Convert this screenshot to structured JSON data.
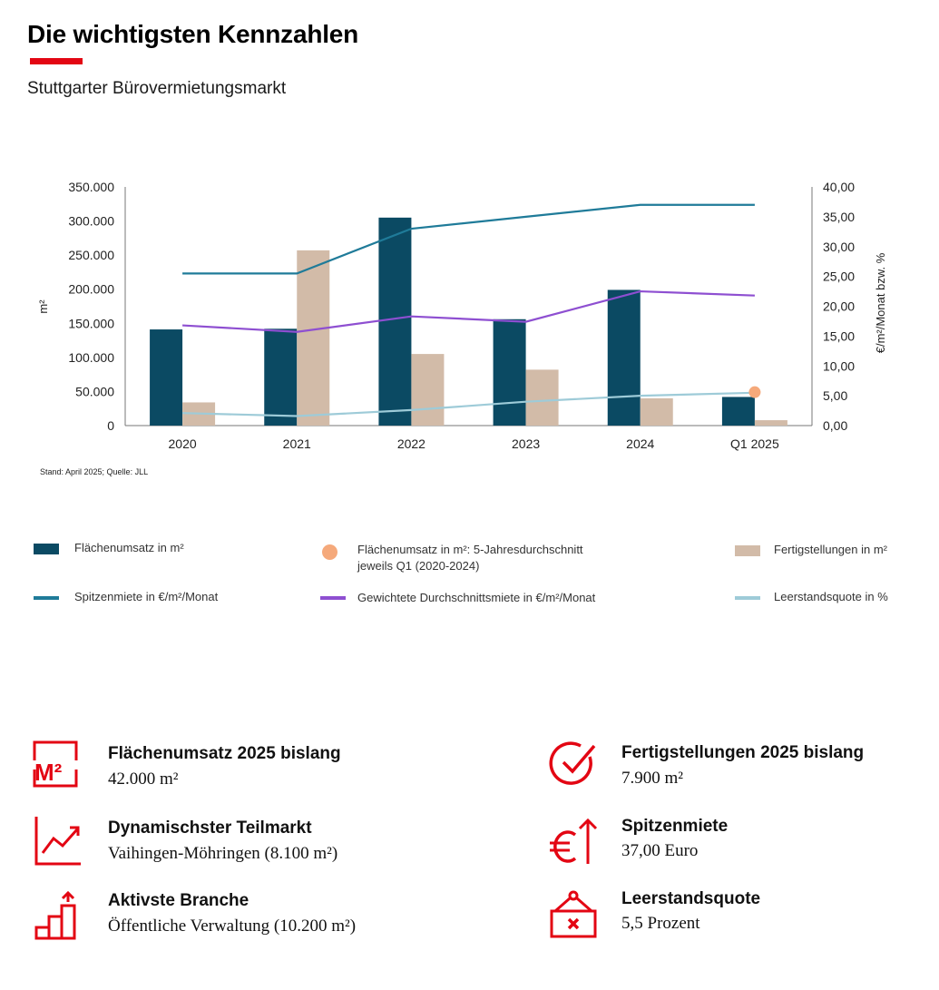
{
  "header": {
    "title": "Die wichtigsten Kennzahlen",
    "subtitle": "Stuttgarter Bürovermietungsmarkt"
  },
  "colors": {
    "accent": "#e30613",
    "flaechenumsatz": "#0b4a63",
    "fertigstellungen": "#d2bba8",
    "spitzenmiete": "#1f7b99",
    "durchschnittsmiete": "#8e4fd1",
    "leerstand": "#9ecbd8",
    "average_dot": "#f5a97b"
  },
  "chart_data": {
    "type": "bar",
    "categories": [
      "2020",
      "2021",
      "2022",
      "2023",
      "2024",
      "Q1 2025"
    ],
    "ylabel": "m²",
    "ylabel_right": "€/m²/Monat bzw. %",
    "ylim": [
      0,
      350000
    ],
    "ylim_right": [
      0,
      40
    ],
    "yticks": [
      "350.000",
      "300.000",
      "250.000",
      "200.000",
      "150.000",
      "100.000",
      "50.000",
      "0"
    ],
    "yticks_right": [
      "40,00",
      "35,00",
      "30,00",
      "25,00",
      "20,00",
      "15,00",
      "10,00",
      "5,00",
      "0,00"
    ],
    "source": "Stand: April 2025; Quelle: JLL",
    "series": [
      {
        "name": "Flächenumsatz in m²",
        "kind": "bar",
        "axis": "left",
        "color": "#0b4a63",
        "values": [
          141000,
          142000,
          305000,
          156000,
          199000,
          42000
        ]
      },
      {
        "name": "Fertigstellungen in m²",
        "kind": "bar",
        "axis": "left",
        "color": "#d2bba8",
        "values": [
          34000,
          257000,
          105000,
          82000,
          40000,
          7900
        ]
      },
      {
        "name": "Spitzenmiete in €/m²/Monat",
        "kind": "line",
        "axis": "right",
        "color": "#1f7b99",
        "values": [
          25.5,
          25.5,
          33.0,
          35.0,
          37.0,
          37.0
        ]
      },
      {
        "name": "Gewichtete Durchschnittsmiete in €/m²/Monat",
        "kind": "line",
        "axis": "right",
        "color": "#8e4fd1",
        "values": [
          16.8,
          15.7,
          18.3,
          17.4,
          22.5,
          21.8
        ]
      },
      {
        "name": "Leerstandsquote in %",
        "kind": "line",
        "axis": "right",
        "color": "#9ecbd8",
        "values": [
          2.1,
          1.6,
          2.6,
          4.0,
          5.0,
          5.5
        ]
      },
      {
        "name": "Flächenumsatz in m²: 5-Jahresdurchschnitt jeweils Q1 (2020-2024)",
        "kind": "point",
        "axis": "left",
        "color": "#f5a97b",
        "category": "Q1 2025",
        "value": 49000
      }
    ]
  },
  "legend": {
    "flaechenumsatz": "Flächenumsatz in m²",
    "avg_line1": "Flächenumsatz in m²: 5-Jahresdurchschnitt",
    "avg_line2": "jeweils Q1 (2020-2024)",
    "fertigstellungen": "Fertigstellungen in m²",
    "spitzenmiete": "Spitzenmiete in €/m²/Monat",
    "durchschnittsmiete": "Gewichtete Durchschnittsmiete in €/m²/Monat",
    "leerstand": "Leerstandsquote in %"
  },
  "kpis": {
    "flaechenumsatz": {
      "label": "Flächenumsatz 2025 bislang",
      "value": "42.000 m²",
      "icon": "m2-icon"
    },
    "teilmarkt": {
      "label": "Dynamischster Teilmarkt",
      "value": "Vaihingen-Möhringen (8.100 m²)",
      "icon": "trend-chart-icon"
    },
    "branche": {
      "label": "Aktivste Branche",
      "value": "Öffentliche Verwaltung (10.200 m²)",
      "icon": "bar-growth-icon"
    },
    "fertigstellungen": {
      "label": "Fertigstellungen 2025 bislang",
      "value": "7.900 m²",
      "icon": "check-circle-icon"
    },
    "spitzenmiete": {
      "label": "Spitzenmiete",
      "value": "37,00 Euro",
      "icon": "euro-up-icon"
    },
    "leerstand": {
      "label": "Leerstandsquote",
      "value": "5,5 Prozent",
      "icon": "vacancy-sign-icon"
    }
  }
}
